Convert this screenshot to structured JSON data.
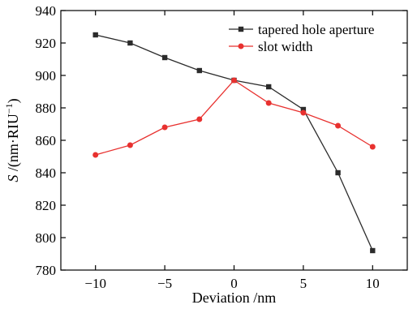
{
  "chart_data": {
    "type": "line",
    "title": "",
    "xlabel": "Deviation /nm",
    "ylabel_italic": "S",
    "ylabel_rest": " /(nm·RIU",
    "ylabel_sup": "−1",
    "ylabel_close": ")",
    "xlim": [
      -12.5,
      12.5
    ],
    "ylim": [
      780,
      940
    ],
    "x_ticks": [
      -10,
      -5,
      0,
      5,
      10
    ],
    "x_tick_labels": [
      "−10",
      "−5",
      "0",
      "5",
      "10"
    ],
    "y_ticks": [
      780,
      800,
      820,
      840,
      860,
      880,
      900,
      920,
      940
    ],
    "y_tick_labels": [
      "780",
      "800",
      "820",
      "840",
      "860",
      "880",
      "900",
      "920",
      "940"
    ],
    "grid": false,
    "legend_position": "top-right",
    "series": [
      {
        "name": "tapered hole aperture",
        "color": "#2b2b2b",
        "marker": "square",
        "x": [
          -10,
          -7.5,
          -5,
          -2.5,
          0,
          2.5,
          5,
          7.5,
          10
        ],
        "y": [
          925,
          920,
          911,
          903,
          897,
          893,
          879,
          840,
          792
        ]
      },
      {
        "name": "slot width",
        "color": "#e8312f",
        "marker": "circle",
        "x": [
          -10,
          -7.5,
          -5,
          -2.5,
          0,
          2.5,
          5,
          7.5,
          10
        ],
        "y": [
          851,
          857,
          868,
          873,
          897,
          883,
          877,
          869,
          856
        ]
      }
    ]
  }
}
